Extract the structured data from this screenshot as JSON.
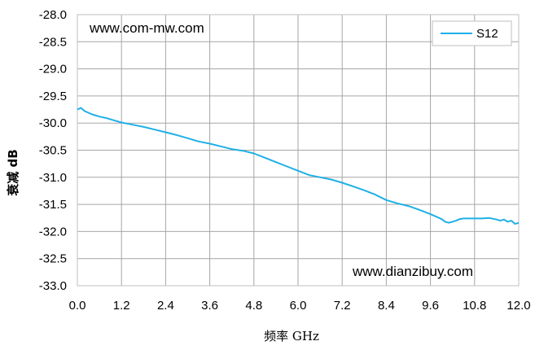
{
  "chart_data": {
    "type": "line",
    "xlabel": "频率 GHz",
    "ylabel": "衰减 dB",
    "xlim": [
      0,
      12
    ],
    "ylim": [
      -33,
      -28
    ],
    "x_ticks": [
      "0.0",
      "1.2",
      "2.4",
      "3.6",
      "4.8",
      "6.0",
      "7.2",
      "8.4",
      "9.6",
      "10.8",
      "12.0"
    ],
    "y_ticks": [
      "-28.0",
      "-28.5",
      "-29.0",
      "-29.5",
      "-30.0",
      "-30.5",
      "-31.0",
      "-31.5",
      "-32.0",
      "-32.5",
      "-33.0"
    ],
    "grid": true,
    "legend_position": "top-right",
    "annotations": [
      "www.com-mw.com",
      "www.dianzibuy.com"
    ],
    "series": [
      {
        "name": "S12",
        "color": "#1fb0e6",
        "x": [
          0.0,
          0.1,
          0.2,
          0.4,
          0.6,
          0.8,
          1.0,
          1.2,
          1.5,
          1.8,
          2.1,
          2.4,
          2.7,
          3.0,
          3.3,
          3.6,
          3.9,
          4.2,
          4.5,
          4.8,
          5.1,
          5.4,
          5.7,
          6.0,
          6.3,
          6.6,
          6.9,
          7.2,
          7.5,
          7.8,
          8.1,
          8.4,
          8.7,
          9.0,
          9.3,
          9.6,
          9.9,
          10.0,
          10.1,
          10.2,
          10.3,
          10.4,
          10.5,
          10.6,
          10.8,
          11.0,
          11.2,
          11.4,
          11.5,
          11.6,
          11.7,
          11.8,
          11.9,
          12.0
        ],
        "values": [
          -29.75,
          -29.72,
          -29.78,
          -29.84,
          -29.88,
          -29.91,
          -29.95,
          -29.99,
          -30.03,
          -30.07,
          -30.12,
          -30.17,
          -30.22,
          -30.28,
          -30.34,
          -30.38,
          -30.43,
          -30.48,
          -30.51,
          -30.56,
          -30.64,
          -30.72,
          -30.8,
          -30.88,
          -30.96,
          -31.0,
          -31.04,
          -31.1,
          -31.17,
          -31.24,
          -31.32,
          -31.42,
          -31.48,
          -31.53,
          -31.6,
          -31.68,
          -31.77,
          -31.82,
          -31.84,
          -31.82,
          -31.8,
          -31.77,
          -31.76,
          -31.76,
          -31.76,
          -31.76,
          -31.75,
          -31.78,
          -31.8,
          -31.78,
          -31.82,
          -31.8,
          -31.86,
          -31.84
        ]
      }
    ]
  }
}
